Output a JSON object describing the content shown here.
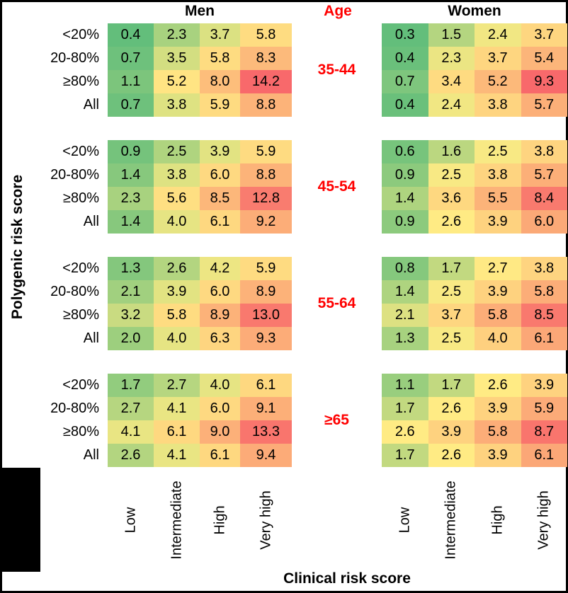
{
  "headers": {
    "men": "Men",
    "age": "Age",
    "women": "Women"
  },
  "colors": {
    "age_label_text": "#FF0000",
    "text": "#000000",
    "background": "#FFFFFF",
    "frame": "#000000",
    "redaction_box": "#000000"
  },
  "chart_data": {
    "type": "heatmap",
    "title": "",
    "xlabel": "Clinical risk score",
    "ylabel": "Polygenic risk score",
    "columns": [
      "Low",
      "Intermediate",
      "High",
      "Very high"
    ],
    "rows": [
      "<20%",
      "20-80%",
      "≥80%",
      "All"
    ],
    "age_groups": [
      "35-44",
      "45-54",
      "55-64",
      "≥65"
    ],
    "value_format": "one_decimal",
    "panels": [
      {
        "sex": "Men",
        "age": "35-44",
        "values": [
          [
            0.4,
            2.3,
            3.7,
            5.8
          ],
          [
            0.7,
            3.5,
            5.8,
            8.3
          ],
          [
            1.1,
            5.2,
            8.0,
            14.2
          ],
          [
            0.7,
            3.8,
            5.9,
            8.8
          ]
        ]
      },
      {
        "sex": "Women",
        "age": "35-44",
        "values": [
          [
            0.3,
            1.5,
            2.4,
            3.7
          ],
          [
            0.4,
            2.3,
            3.7,
            5.4
          ],
          [
            0.7,
            3.4,
            5.2,
            9.3
          ],
          [
            0.4,
            2.4,
            3.8,
            5.7
          ]
        ]
      },
      {
        "sex": "Men",
        "age": "45-54",
        "values": [
          [
            0.9,
            2.5,
            3.9,
            5.9
          ],
          [
            1.4,
            3.8,
            6.0,
            8.8
          ],
          [
            2.3,
            5.6,
            8.5,
            12.8
          ],
          [
            1.4,
            4.0,
            6.1,
            9.2
          ]
        ]
      },
      {
        "sex": "Women",
        "age": "45-54",
        "values": [
          [
            0.6,
            1.6,
            2.5,
            3.8
          ],
          [
            0.9,
            2.5,
            3.8,
            5.7
          ],
          [
            1.4,
            3.6,
            5.5,
            8.4
          ],
          [
            0.9,
            2.6,
            3.9,
            6.0
          ]
        ]
      },
      {
        "sex": "Men",
        "age": "55-64",
        "values": [
          [
            1.3,
            2.6,
            4.2,
            5.9
          ],
          [
            2.1,
            3.9,
            6.0,
            8.9
          ],
          [
            3.2,
            5.8,
            8.9,
            13.0
          ],
          [
            2.0,
            4.0,
            6.3,
            9.3
          ]
        ]
      },
      {
        "sex": "Women",
        "age": "55-64",
        "values": [
          [
            0.8,
            1.7,
            2.7,
            3.8
          ],
          [
            1.4,
            2.5,
            3.9,
            5.8
          ],
          [
            2.1,
            3.7,
            5.8,
            8.5
          ],
          [
            1.3,
            2.5,
            4.0,
            6.1
          ]
        ]
      },
      {
        "sex": "Men",
        "age": "≥65",
        "values": [
          [
            1.7,
            2.7,
            4.0,
            6.1
          ],
          [
            2.7,
            4.1,
            6.0,
            9.1
          ],
          [
            4.1,
            6.1,
            9.0,
            13.3
          ],
          [
            2.6,
            4.1,
            6.1,
            9.4
          ]
        ]
      },
      {
        "sex": "Women",
        "age": "≥65",
        "values": [
          [
            1.1,
            1.7,
            2.6,
            3.9
          ],
          [
            1.7,
            2.6,
            3.9,
            5.9
          ],
          [
            2.6,
            3.9,
            5.8,
            8.7
          ],
          [
            1.7,
            2.6,
            3.9,
            6.1
          ]
        ]
      }
    ],
    "color_scale": {
      "green": "#63BE7B",
      "yellow": "#FFEB84",
      "red": "#F8696B",
      "men": {
        "min": 0.4,
        "mid": 4.7,
        "max": 14.2
      },
      "women": {
        "min": 0.3,
        "mid": 2.6,
        "max": 9.3
      }
    },
    "legend": "none",
    "grid": "off"
  }
}
